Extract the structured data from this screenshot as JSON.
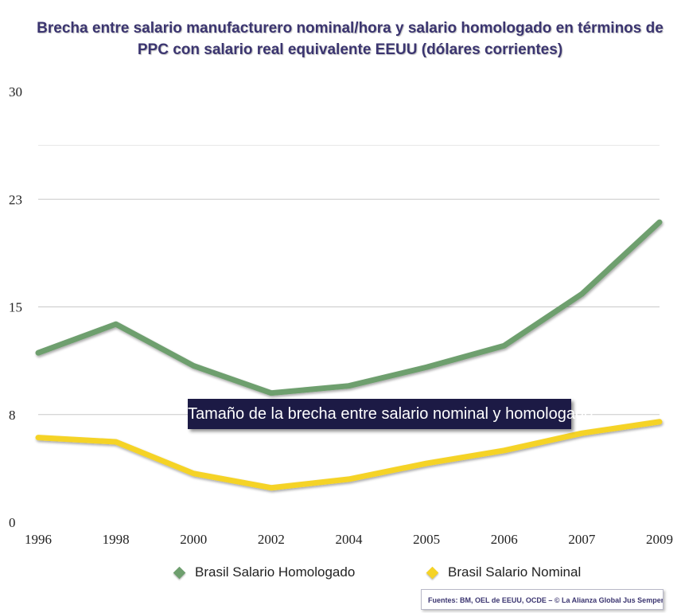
{
  "title_lines": [
    "Brecha entre salario manufacturero nominal/hora y salario homologado en términos de",
    "PPC con salario real equivalente EEUU (dólares corrientes)"
  ],
  "annotation": "Tamaño de la brecha entre salario nominal y homologado",
  "source": "Fuentes: BM, OEL de EEUU, OCDE – © La Alianza Global Jus Semper",
  "colors": {
    "title": "#3b3570",
    "homologado": "#6e9f6e",
    "nominal": "#f5d327",
    "annotation_bg": "#1c1a45",
    "grid": "#c8c8c8"
  },
  "chart_data": {
    "type": "line",
    "categories": [
      "1996",
      "1998",
      "2000",
      "2002",
      "2004",
      "2005",
      "2006",
      "2007",
      "2009"
    ],
    "y_ticks": [
      "0",
      "8",
      "15",
      "23",
      "30"
    ],
    "ylim": [
      0,
      30
    ],
    "grid": true,
    "legend_position": "bottom",
    "series": [
      {
        "name": "Brasil Salario Homologado",
        "color": "#6e9f6e",
        "values": [
          11.8,
          13.8,
          10.9,
          9.0,
          9.5,
          10.8,
          12.3,
          15.9,
          20.9
        ]
      },
      {
        "name": "Brasil Salario Nominal",
        "color": "#f5d327",
        "values": [
          5.9,
          5.6,
          3.4,
          2.4,
          3.0,
          4.1,
          5.0,
          6.2,
          7.0
        ]
      }
    ]
  }
}
